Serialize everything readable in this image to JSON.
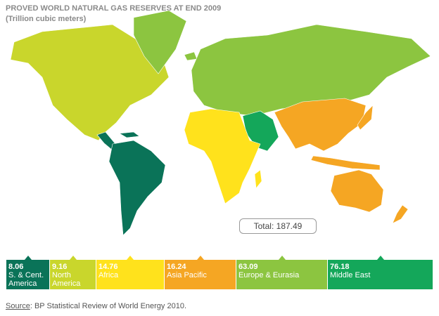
{
  "title": "PROVED WORLD NATURAL GAS RESERVES AT END 2009",
  "subtitle": "(Trillion cubic meters)",
  "regions": [
    {
      "value": "8.06",
      "label": "S. & Cent. America",
      "color": "#0a7358"
    },
    {
      "value": "9.16",
      "label": "North America",
      "color": "#c9d62c"
    },
    {
      "value": "14.76",
      "label": "Africa",
      "color": "#ffe21c"
    },
    {
      "value": "16.24",
      "label": "Asia Pacific",
      "color": "#f5a623"
    },
    {
      "value": "63.09",
      "label": "Europe & Eurasia",
      "color": "#8cc540"
    },
    {
      "value": "76.18",
      "label": "Middle East",
      "color": "#14a75a"
    }
  ],
  "total": {
    "label": "Total:",
    "value": "187.49"
  },
  "source": {
    "label": "Source",
    "text": ": BP Statistical Review of World Energy 2010."
  }
}
